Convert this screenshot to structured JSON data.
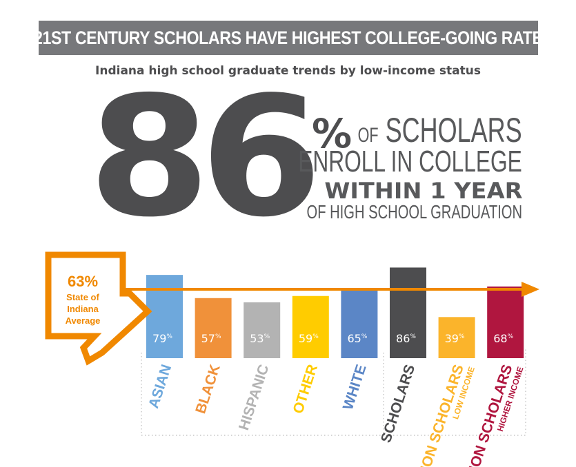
{
  "header": {
    "title": "21ST CENTURY SCHOLARS HAVE HIGHEST COLLEGE-GOING RATE",
    "subtitle": "Indiana high school graduate trends by low-income status"
  },
  "headline": {
    "big_number": "86",
    "percent_sign": "%",
    "line1_prefix": "OF",
    "line1_main": "SCHOLARS",
    "line2": "ENROLL IN COLLEGE",
    "line3": "WITHIN 1 YEAR",
    "line4": "OF HIGH SCHOOL GRADUATION"
  },
  "average": {
    "value_label": "63%",
    "line1": "State of",
    "line2": "Indiana",
    "line3": "Average",
    "value": 63,
    "color": "#f08800"
  },
  "chart_data": {
    "type": "bar",
    "categories": [
      "ASIAN",
      "BLACK",
      "HISPANIC",
      "OTHER",
      "WHITE",
      "SCHOLARS",
      "NON SCHOLARS",
      "NON SCHOLARS"
    ],
    "category_sublabels": [
      "",
      "",
      "",
      "",
      "",
      "",
      "LOW INCOME",
      "HIGHER INCOME"
    ],
    "values": [
      79,
      57,
      53,
      59,
      65,
      86,
      39,
      68
    ],
    "value_labels": [
      "79",
      "57",
      "53",
      "59",
      "65",
      "86",
      "39",
      "68"
    ],
    "value_suffix": "%",
    "colors": [
      "#6ea8dc",
      "#f0913a",
      "#b3b3b3",
      "#ffcc00",
      "#5b86c6",
      "#4d4d4f",
      "#fbb42b",
      "#b0163f"
    ],
    "reference_line": 63,
    "title": "",
    "xlabel": "",
    "ylabel": ""
  }
}
